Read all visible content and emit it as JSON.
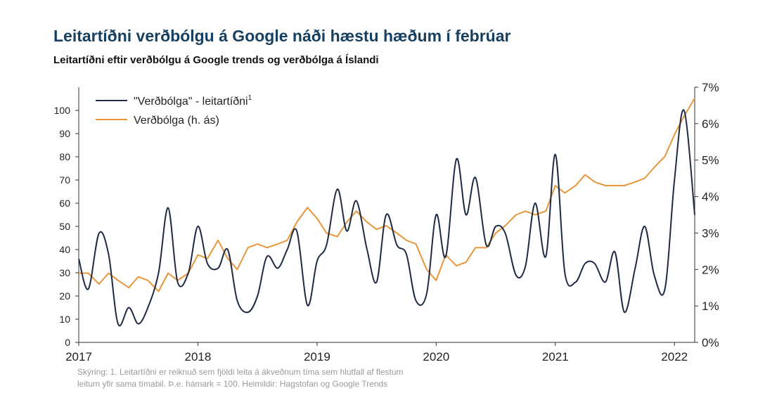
{
  "title": "Leitartíðni verðbólgu á Google náði hæstu hæðum í febrúar",
  "subtitle": "Leitartíðni eftir verðbólgu á Google trends og verðbólga á Íslandi",
  "footnote": {
    "line1": "Skýring: 1. Leitartíðni er reiknuð sem fjöldi leita á ákveðnum tíma sem hlutfall af flestum",
    "line2": "leitum yfir sama tímabil. Þ.e. hámark = 100. Heimildir: Hagstofan og Google Trends"
  },
  "colors": {
    "search": "#1f2a44",
    "inflation": "#e8963a",
    "axis": "#333333"
  },
  "chart_data": {
    "type": "line",
    "x_tick_labels": [
      "2017",
      "2018",
      "2019",
      "2020",
      "2021",
      "2022"
    ],
    "x_range": [
      2017.0,
      2022.17
    ],
    "y_left": {
      "ticks": [
        "0",
        "10",
        "20",
        "30",
        "40",
        "50",
        "60",
        "70",
        "80",
        "90",
        "100"
      ],
      "range": [
        0,
        110
      ]
    },
    "y_right": {
      "ticks": [
        "0%",
        "1%",
        "2%",
        "3%",
        "4%",
        "5%",
        "6%",
        "7%"
      ],
      "range": [
        0,
        7
      ]
    },
    "legend_position": "top-left",
    "grid": false,
    "series": [
      {
        "name": "\"Verðbólga\" - leitartíðni",
        "name_superscript": "1",
        "axis": "left",
        "points": [
          [
            2017.0,
            36
          ],
          [
            2017.08,
            23
          ],
          [
            2017.17,
            47
          ],
          [
            2017.25,
            38
          ],
          [
            2017.33,
            8
          ],
          [
            2017.42,
            15
          ],
          [
            2017.5,
            8
          ],
          [
            2017.58,
            15
          ],
          [
            2017.67,
            30
          ],
          [
            2017.75,
            58
          ],
          [
            2017.83,
            26
          ],
          [
            2017.92,
            30
          ],
          [
            2018.0,
            50
          ],
          [
            2018.08,
            34
          ],
          [
            2018.17,
            32
          ],
          [
            2018.25,
            40
          ],
          [
            2018.33,
            18
          ],
          [
            2018.42,
            13
          ],
          [
            2018.5,
            20
          ],
          [
            2018.58,
            37
          ],
          [
            2018.67,
            32
          ],
          [
            2018.75,
            40
          ],
          [
            2018.83,
            48
          ],
          [
            2018.92,
            16
          ],
          [
            2019.0,
            35
          ],
          [
            2019.08,
            42
          ],
          [
            2019.17,
            66
          ],
          [
            2019.25,
            48
          ],
          [
            2019.33,
            61
          ],
          [
            2019.42,
            40
          ],
          [
            2019.5,
            26
          ],
          [
            2019.58,
            55
          ],
          [
            2019.67,
            42
          ],
          [
            2019.75,
            38
          ],
          [
            2019.83,
            18
          ],
          [
            2019.92,
            21
          ],
          [
            2020.0,
            55
          ],
          [
            2020.08,
            37
          ],
          [
            2020.17,
            79
          ],
          [
            2020.25,
            55
          ],
          [
            2020.33,
            71
          ],
          [
            2020.42,
            42
          ],
          [
            2020.5,
            50
          ],
          [
            2020.58,
            47
          ],
          [
            2020.67,
            29
          ],
          [
            2020.75,
            33
          ],
          [
            2020.83,
            60
          ],
          [
            2020.92,
            37
          ],
          [
            2021.0,
            81
          ],
          [
            2021.08,
            30
          ],
          [
            2021.17,
            26
          ],
          [
            2021.25,
            34
          ],
          [
            2021.33,
            34
          ],
          [
            2021.42,
            26
          ],
          [
            2021.5,
            39
          ],
          [
            2021.58,
            13
          ],
          [
            2021.67,
            32
          ],
          [
            2021.75,
            50
          ],
          [
            2021.83,
            29
          ],
          [
            2021.92,
            23
          ],
          [
            2022.0,
            70
          ],
          [
            2022.08,
            100
          ],
          [
            2022.17,
            55
          ]
        ]
      },
      {
        "name": "Verðbólga (h. ás)",
        "axis": "right",
        "points": [
          [
            2017.0,
            1.9
          ],
          [
            2017.08,
            1.9
          ],
          [
            2017.17,
            1.6
          ],
          [
            2017.25,
            1.9
          ],
          [
            2017.33,
            1.7
          ],
          [
            2017.42,
            1.5
          ],
          [
            2017.5,
            1.8
          ],
          [
            2017.58,
            1.7
          ],
          [
            2017.67,
            1.4
          ],
          [
            2017.75,
            1.9
          ],
          [
            2017.83,
            1.7
          ],
          [
            2017.92,
            1.9
          ],
          [
            2018.0,
            2.4
          ],
          [
            2018.08,
            2.3
          ],
          [
            2018.17,
            2.8
          ],
          [
            2018.25,
            2.3
          ],
          [
            2018.33,
            2.0
          ],
          [
            2018.42,
            2.6
          ],
          [
            2018.5,
            2.7
          ],
          [
            2018.58,
            2.6
          ],
          [
            2018.67,
            2.7
          ],
          [
            2018.75,
            2.8
          ],
          [
            2018.83,
            3.3
          ],
          [
            2018.92,
            3.7
          ],
          [
            2019.0,
            3.4
          ],
          [
            2019.08,
            3.0
          ],
          [
            2019.17,
            2.9
          ],
          [
            2019.25,
            3.3
          ],
          [
            2019.33,
            3.6
          ],
          [
            2019.42,
            3.3
          ],
          [
            2019.5,
            3.1
          ],
          [
            2019.58,
            3.2
          ],
          [
            2019.67,
            3.0
          ],
          [
            2019.75,
            2.8
          ],
          [
            2019.83,
            2.7
          ],
          [
            2019.92,
            2.0
          ],
          [
            2020.0,
            1.7
          ],
          [
            2020.08,
            2.4
          ],
          [
            2020.17,
            2.1
          ],
          [
            2020.25,
            2.2
          ],
          [
            2020.33,
            2.6
          ],
          [
            2020.42,
            2.6
          ],
          [
            2020.5,
            3.0
          ],
          [
            2020.58,
            3.2
          ],
          [
            2020.67,
            3.5
          ],
          [
            2020.75,
            3.6
          ],
          [
            2020.83,
            3.5
          ],
          [
            2020.92,
            3.6
          ],
          [
            2021.0,
            4.3
          ],
          [
            2021.08,
            4.1
          ],
          [
            2021.17,
            4.3
          ],
          [
            2021.25,
            4.6
          ],
          [
            2021.33,
            4.4
          ],
          [
            2021.42,
            4.3
          ],
          [
            2021.5,
            4.3
          ],
          [
            2021.58,
            4.3
          ],
          [
            2021.67,
            4.4
          ],
          [
            2021.75,
            4.5
          ],
          [
            2021.83,
            4.8
          ],
          [
            2021.92,
            5.1
          ],
          [
            2022.0,
            5.7
          ],
          [
            2022.08,
            6.2
          ],
          [
            2022.17,
            6.7
          ]
        ]
      }
    ]
  }
}
